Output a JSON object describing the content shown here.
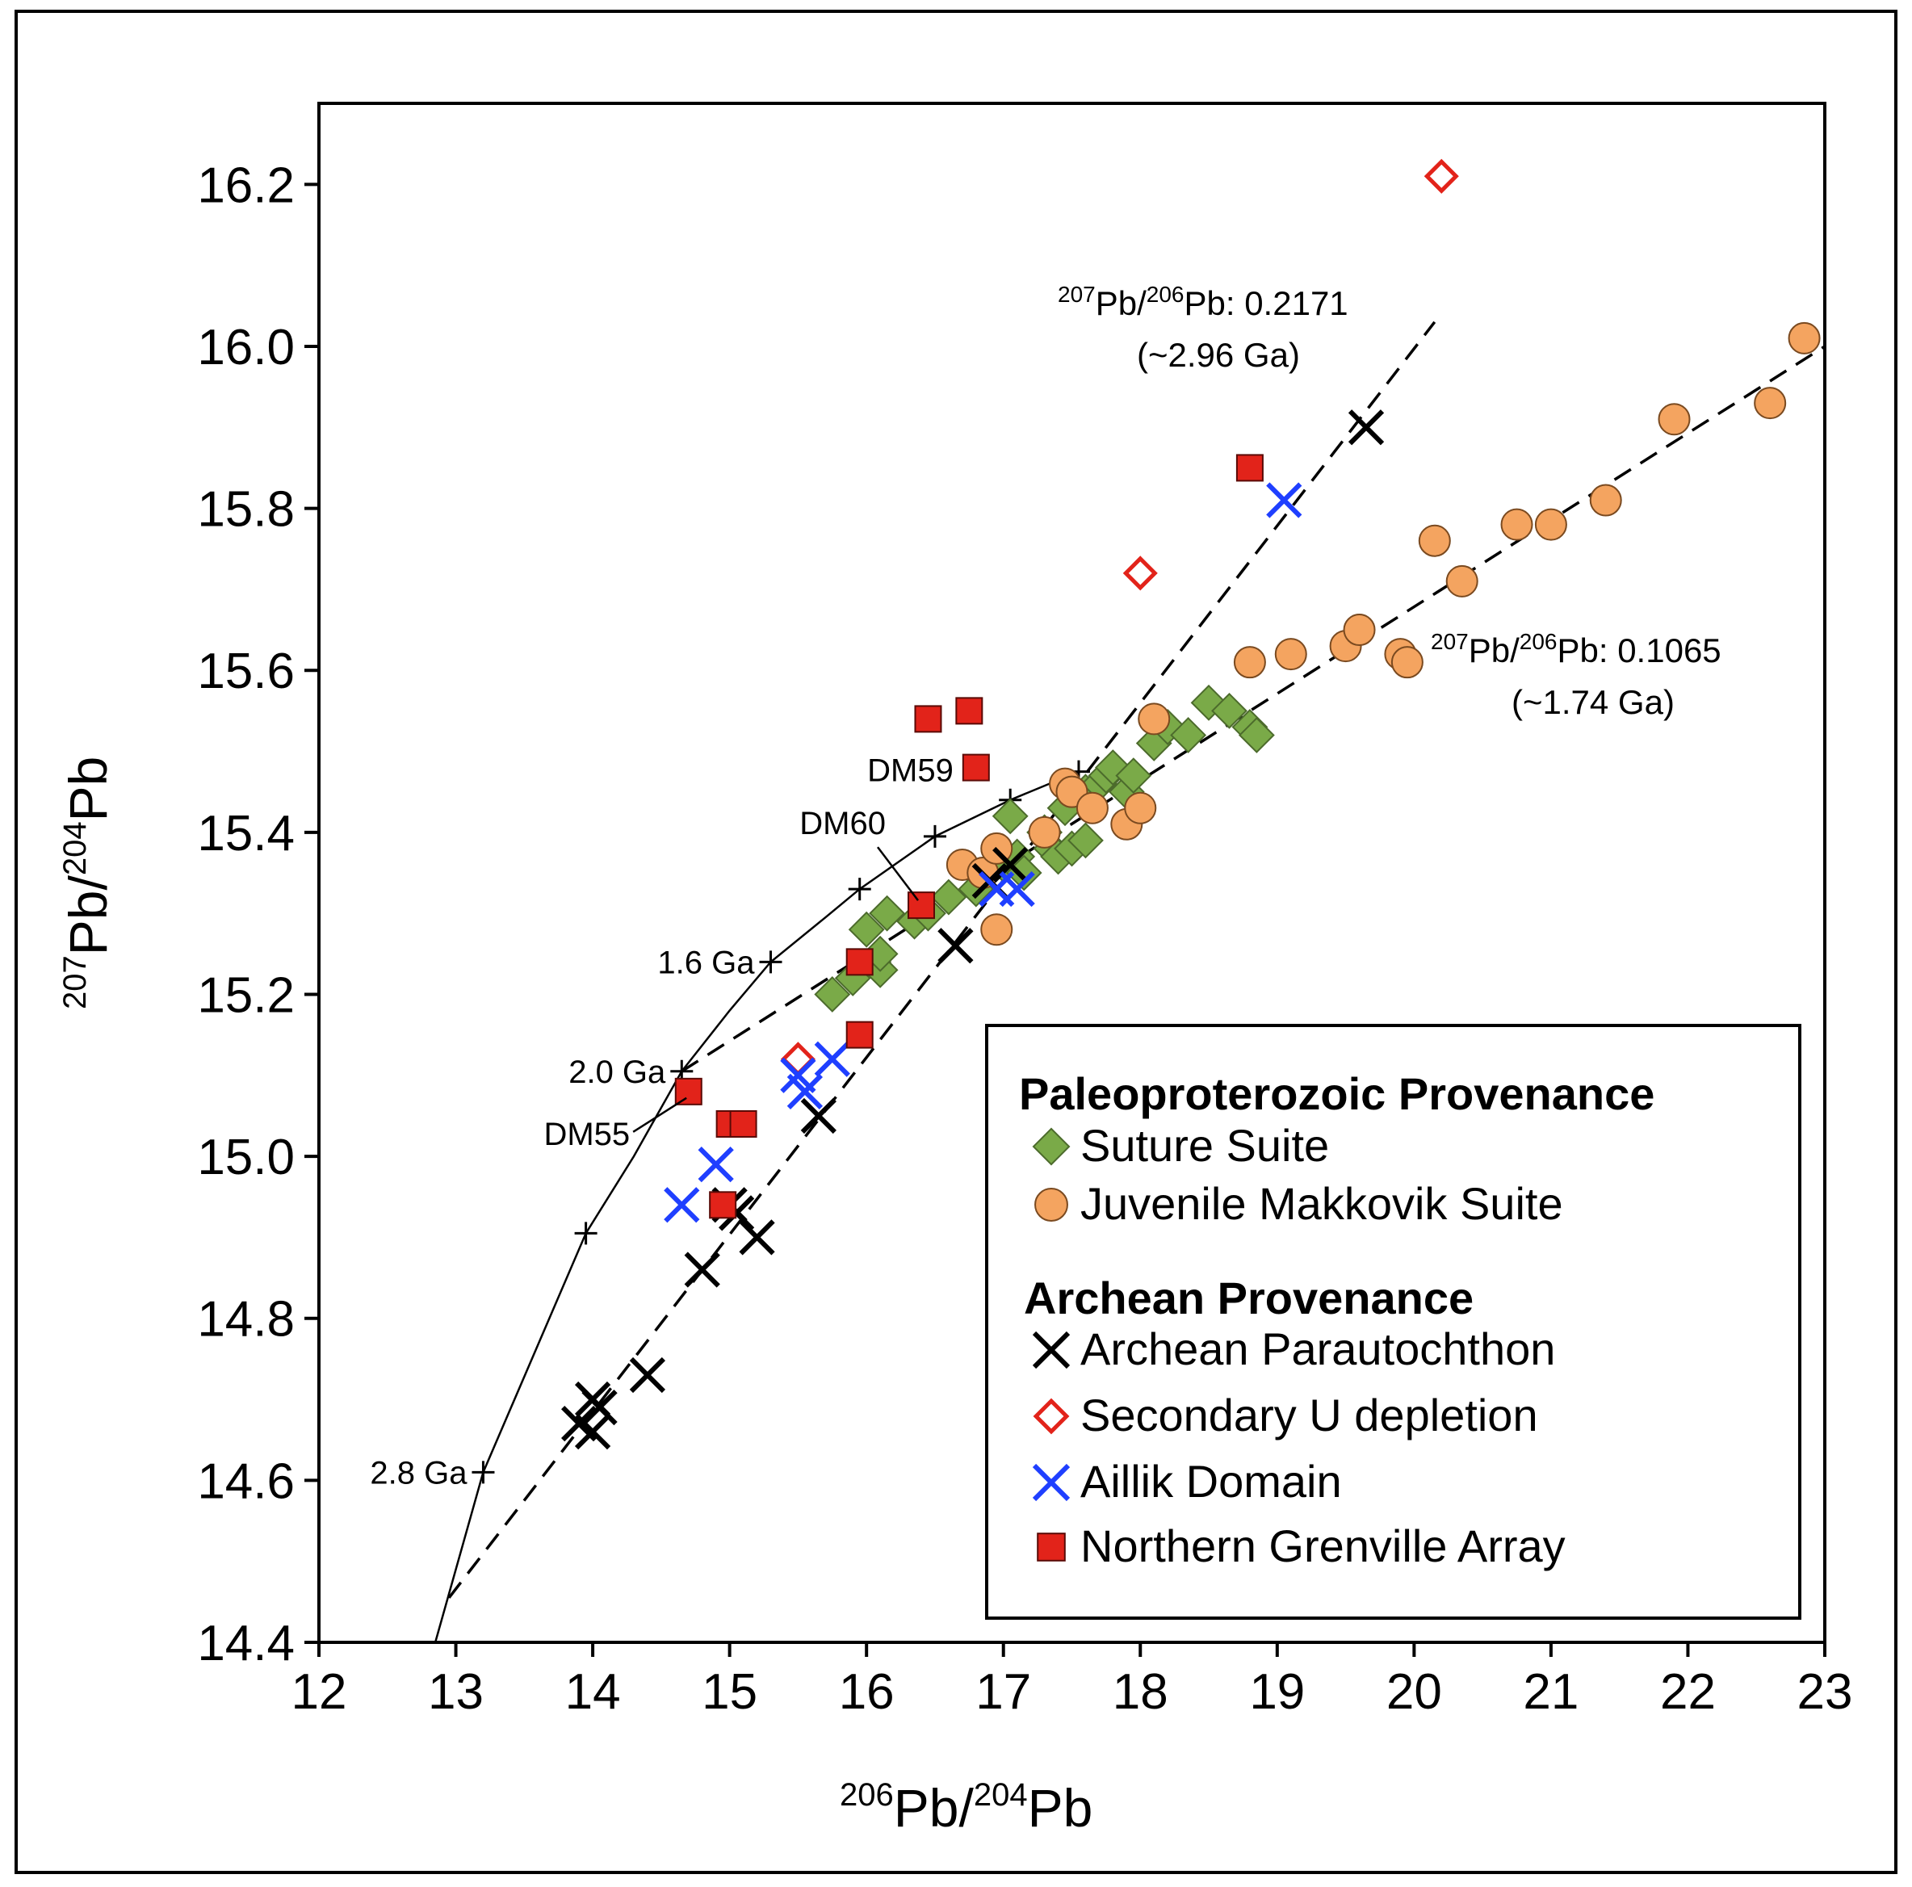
{
  "chart_data": {
    "type": "scatter",
    "xlabel": "206Pb/204Pb",
    "ylabel": "207Pb/204Pb",
    "xlim": [
      12,
      23
    ],
    "ylim": [
      14.4,
      16.3
    ],
    "x_ticks": [
      "12",
      "13",
      "14",
      "15",
      "16",
      "17",
      "18",
      "19",
      "20",
      "21",
      "22",
      "23"
    ],
    "y_ticks": [
      "14.4",
      "14.6",
      "14.8",
      "15.0",
      "15.2",
      "15.4",
      "15.6",
      "15.8",
      "16.0",
      "16.2"
    ],
    "reference_lines": [
      {
        "name": "Archean reference line",
        "slope_label": "207Pb/206Pb: 0.2171",
        "age_label": "(~2.96 Ga)",
        "from": [
          12.95,
          14.455
        ],
        "to": [
          20.15,
          16.03
        ]
      },
      {
        "name": "Paleoproterozoic reference line",
        "slope_label": "207Pb/206Pb: 0.1065",
        "age_label": "(~1.74 Ga)",
        "from": [
          14.65,
          15.105
        ],
        "to": [
          23.0,
          16.0
        ]
      }
    ],
    "growth_curve": {
      "points": [
        [
          12.85,
          14.4
        ],
        [
          13.2,
          14.61
        ],
        [
          13.95,
          14.905
        ],
        [
          14.3,
          15.0
        ],
        [
          14.65,
          15.105
        ],
        [
          15.0,
          15.18
        ],
        [
          15.3,
          15.24
        ],
        [
          15.7,
          15.295
        ],
        [
          15.95,
          15.33
        ],
        [
          16.5,
          15.395
        ],
        [
          17.05,
          15.44
        ],
        [
          17.55,
          15.475
        ]
      ],
      "tick_marks": [
        [
          13.2,
          14.61
        ],
        [
          13.95,
          14.905
        ],
        [
          14.65,
          15.105
        ],
        [
          15.3,
          15.24
        ],
        [
          15.95,
          15.33
        ],
        [
          16.5,
          15.395
        ],
        [
          17.05,
          15.44
        ],
        [
          17.55,
          15.475
        ]
      ],
      "age_labels": [
        {
          "text": "2.8 Ga",
          "x": 13.2,
          "y": 14.61
        },
        {
          "text": "2.0 Ga",
          "x": 14.65,
          "y": 15.105
        },
        {
          "text": "1.6 Ga",
          "x": 15.3,
          "y": 15.24
        }
      ]
    },
    "sample_labels": [
      {
        "text": "DM59",
        "x": 16.8,
        "y": 15.475
      },
      {
        "text": "DM60",
        "x": 16.4,
        "y": 15.31
      },
      {
        "text": "DM55",
        "x": 14.72,
        "y": 15.08
      }
    ],
    "legend": {
      "heading_1": "Paleoproterozoic Provenance",
      "heading_2": "Archean Provenance",
      "placement": "bottom-right"
    },
    "series": [
      {
        "name": "Suture Suite",
        "marker": "diamond",
        "color": "#7aaa48",
        "points": [
          [
            15.75,
            15.2
          ],
          [
            15.9,
            15.22
          ],
          [
            16.05,
            15.24
          ],
          [
            16.1,
            15.23
          ],
          [
            16.0,
            15.28
          ],
          [
            16.1,
            15.25
          ],
          [
            16.15,
            15.3
          ],
          [
            16.35,
            15.29
          ],
          [
            16.45,
            15.3
          ],
          [
            16.6,
            15.32
          ],
          [
            16.8,
            15.33
          ],
          [
            17.0,
            15.36
          ],
          [
            17.1,
            15.37
          ],
          [
            17.15,
            15.35
          ],
          [
            17.3,
            15.4
          ],
          [
            17.35,
            15.38
          ],
          [
            17.4,
            15.37
          ],
          [
            17.5,
            15.38
          ],
          [
            17.6,
            15.39
          ],
          [
            17.05,
            15.42
          ],
          [
            17.45,
            15.43
          ],
          [
            17.6,
            15.45
          ],
          [
            17.7,
            15.46
          ],
          [
            17.75,
            15.47
          ],
          [
            17.8,
            15.48
          ],
          [
            17.9,
            15.45
          ],
          [
            17.95,
            15.47
          ],
          [
            18.1,
            15.51
          ],
          [
            18.2,
            15.53
          ],
          [
            18.35,
            15.52
          ],
          [
            18.5,
            15.56
          ],
          [
            18.65,
            15.55
          ],
          [
            18.8,
            15.53
          ],
          [
            18.85,
            15.52
          ]
        ]
      },
      {
        "name": "Juvenile Makkovik Suite",
        "marker": "circle",
        "color": "#f4a460",
        "points": [
          [
            16.7,
            15.36
          ],
          [
            16.85,
            15.35
          ],
          [
            16.95,
            15.38
          ],
          [
            17.3,
            15.4
          ],
          [
            17.45,
            15.46
          ],
          [
            17.5,
            15.45
          ],
          [
            17.65,
            15.43
          ],
          [
            17.9,
            15.41
          ],
          [
            18.0,
            15.43
          ],
          [
            16.95,
            15.28
          ],
          [
            18.1,
            15.54
          ],
          [
            18.8,
            15.61
          ],
          [
            19.1,
            15.62
          ],
          [
            19.5,
            15.63
          ],
          [
            19.6,
            15.65
          ],
          [
            19.9,
            15.62
          ],
          [
            19.95,
            15.61
          ],
          [
            20.15,
            15.76
          ],
          [
            20.35,
            15.71
          ],
          [
            20.75,
            15.78
          ],
          [
            21.0,
            15.78
          ],
          [
            21.4,
            15.81
          ],
          [
            21.9,
            15.91
          ],
          [
            22.6,
            15.93
          ],
          [
            22.85,
            16.01
          ]
        ]
      },
      {
        "name": "Archean Parautochthon",
        "marker": "x",
        "color": "#000000",
        "points": [
          [
            13.9,
            14.67
          ],
          [
            14.0,
            14.66
          ],
          [
            14.05,
            14.69
          ],
          [
            14.0,
            14.7
          ],
          [
            14.4,
            14.73
          ],
          [
            14.8,
            14.86
          ],
          [
            15.0,
            14.94
          ],
          [
            15.05,
            14.93
          ],
          [
            15.2,
            14.9
          ],
          [
            15.65,
            15.05
          ],
          [
            16.65,
            15.26
          ],
          [
            16.9,
            15.34
          ],
          [
            17.05,
            15.36
          ],
          [
            19.65,
            15.9
          ]
        ]
      },
      {
        "name": "Secondary U depletion",
        "marker": "open-diamond",
        "color": "#e2231a",
        "points": [
          [
            15.5,
            15.12
          ],
          [
            18.0,
            15.72
          ],
          [
            20.2,
            16.21
          ]
        ]
      },
      {
        "name": "Aillik Domain",
        "marker": "x",
        "color": "#1f3fff",
        "points": [
          [
            14.65,
            14.94
          ],
          [
            14.9,
            14.99
          ],
          [
            15.5,
            15.1
          ],
          [
            15.55,
            15.08
          ],
          [
            15.75,
            15.12
          ],
          [
            16.95,
            15.33
          ],
          [
            17.1,
            15.33
          ],
          [
            19.05,
            15.81
          ]
        ]
      },
      {
        "name": "Northern Grenville Array",
        "marker": "square",
        "color": "#e2231a",
        "points": [
          [
            14.7,
            15.08
          ],
          [
            15.0,
            15.04
          ],
          [
            15.1,
            15.04
          ],
          [
            14.95,
            14.94
          ],
          [
            15.95,
            15.15
          ],
          [
            15.95,
            15.24
          ],
          [
            16.4,
            15.31
          ],
          [
            16.45,
            15.54
          ],
          [
            16.75,
            15.55
          ],
          [
            16.8,
            15.48
          ],
          [
            18.8,
            15.85
          ]
        ]
      }
    ]
  }
}
